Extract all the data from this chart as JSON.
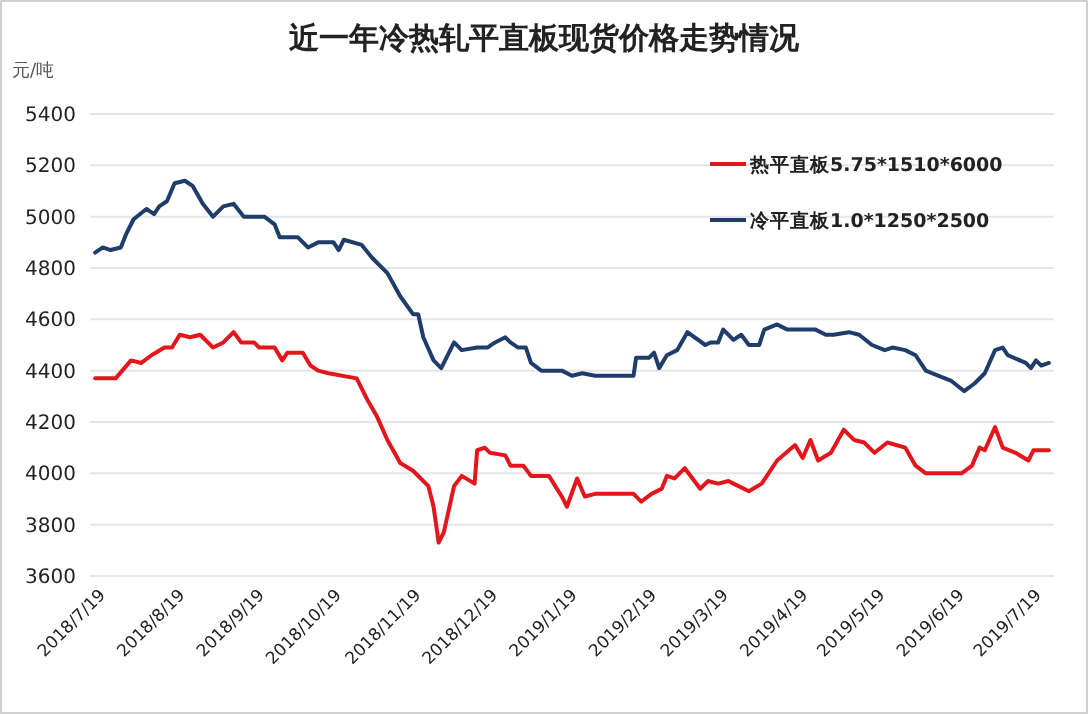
{
  "chart_data": {
    "type": "line",
    "title": "近一年冷热轧平直板现货价格走势情况",
    "ylabel": "元/吨",
    "xlim": [
      "2018-07-15",
      "2019-07-26"
    ],
    "ylim": [
      3600,
      5400
    ],
    "yticks": [
      3600,
      3800,
      4000,
      4200,
      4400,
      4600,
      4800,
      5000,
      5200,
      5400
    ],
    "xticks": [
      {
        "value": "2018-07-19",
        "label": "2018/7/19"
      },
      {
        "value": "2018-08-19",
        "label": "2018/8/19"
      },
      {
        "value": "2018-09-19",
        "label": "2018/9/19"
      },
      {
        "value": "2018-10-19",
        "label": "2018/10/19"
      },
      {
        "value": "2018-11-19",
        "label": "2018/11/19"
      },
      {
        "value": "2018-12-19",
        "label": "2018/12/19"
      },
      {
        "value": "2019-01-19",
        "label": "2019/1/19"
      },
      {
        "value": "2019-02-19",
        "label": "2019/2/19"
      },
      {
        "value": "2019-03-19",
        "label": "2019/3/19"
      },
      {
        "value": "2019-04-19",
        "label": "2019/4/19"
      },
      {
        "value": "2019-05-19",
        "label": "2019/5/19"
      },
      {
        "value": "2019-06-19",
        "label": "2019/6/19"
      },
      {
        "value": "2019-07-19",
        "label": "2019/7/19"
      }
    ],
    "grid": "y",
    "legend": "top right",
    "marker": "none",
    "line_style": "solid",
    "series": [
      {
        "name": "热平直板5.75*1510*6000",
        "color": "#e3161c",
        "x": [
          "2018-07-17",
          "2018-07-25",
          "2018-07-31",
          "2018-08-04",
          "2018-08-08",
          "2018-08-13",
          "2018-08-16",
          "2018-08-19",
          "2018-08-23",
          "2018-08-27",
          "2018-09-01",
          "2018-09-05",
          "2018-09-09",
          "2018-09-12",
          "2018-09-17",
          "2018-09-19",
          "2018-09-25",
          "2018-09-28",
          "2018-09-30",
          "2018-10-06",
          "2018-10-09",
          "2018-10-12",
          "2018-10-16",
          "2018-10-27",
          "2018-10-31",
          "2018-11-04",
          "2018-11-08",
          "2018-11-13",
          "2018-11-18",
          "2018-11-24",
          "2018-11-26",
          "2018-11-28",
          "2018-11-30",
          "2018-12-04",
          "2018-12-07",
          "2018-12-12",
          "2018-12-13",
          "2018-12-16",
          "2018-12-18",
          "2018-12-24",
          "2018-12-26",
          "2018-12-31",
          "2019-01-03",
          "2019-01-10",
          "2019-01-15",
          "2019-01-17",
          "2019-01-21",
          "2019-01-24",
          "2019-01-28",
          "2019-02-12",
          "2019-02-15",
          "2019-02-19",
          "2019-02-23",
          "2019-02-25",
          "2019-02-28",
          "2019-03-04",
          "2019-03-07",
          "2019-03-10",
          "2019-03-13",
          "2019-03-17",
          "2019-03-21",
          "2019-03-23",
          "2019-03-29",
          "2019-04-03",
          "2019-04-05",
          "2019-04-09",
          "2019-04-16",
          "2019-04-19",
          "2019-04-22",
          "2019-04-25",
          "2019-04-30",
          "2019-05-05",
          "2019-05-09",
          "2019-05-13",
          "2019-05-17",
          "2019-05-22",
          "2019-05-29",
          "2019-06-02",
          "2019-06-06",
          "2019-06-12",
          "2019-06-20",
          "2019-06-24",
          "2019-06-27",
          "2019-06-29",
          "2019-07-03",
          "2019-07-06",
          "2019-07-11",
          "2019-07-16",
          "2019-07-18",
          "2019-07-21",
          "2019-07-24"
        ],
        "values": [
          4370,
          4370,
          4440,
          4430,
          4460,
          4490,
          4490,
          4540,
          4530,
          4540,
          4490,
          4510,
          4550,
          4510,
          4510,
          4490,
          4490,
          4440,
          4470,
          4470,
          4420,
          4400,
          4390,
          4370,
          4290,
          4220,
          4130,
          4040,
          4010,
          3950,
          3870,
          3730,
          3770,
          3950,
          3990,
          3960,
          4090,
          4100,
          4080,
          4070,
          4030,
          4030,
          3990,
          3990,
          3910,
          3870,
          3980,
          3910,
          3920,
          3920,
          3890,
          3920,
          3940,
          3990,
          3980,
          4020,
          3980,
          3940,
          3970,
          3960,
          3970,
          3960,
          3930,
          3960,
          3990,
          4050,
          4110,
          4060,
          4130,
          4050,
          4080,
          4170,
          4130,
          4120,
          4080,
          4120,
          4100,
          4030,
          4000,
          4000,
          4000,
          4030,
          4100,
          4090,
          4180,
          4100,
          4080,
          4050,
          4090,
          4090,
          4090
        ]
      },
      {
        "name": "冷平直板1.0*1250*2500",
        "color": "#1f3d6b",
        "x": [
          "2018-07-17",
          "2018-07-20",
          "2018-07-23",
          "2018-07-27",
          "2018-07-29",
          "2018-08-01",
          "2018-08-06",
          "2018-08-09",
          "2018-08-11",
          "2018-08-14",
          "2018-08-17",
          "2018-08-21",
          "2018-08-24",
          "2018-08-28",
          "2018-09-01",
          "2018-09-05",
          "2018-09-09",
          "2018-09-13",
          "2018-09-21",
          "2018-09-25",
          "2018-09-27",
          "2018-10-04",
          "2018-10-08",
          "2018-10-12",
          "2018-10-18",
          "2018-10-20",
          "2018-10-22",
          "2018-10-29",
          "2018-11-02",
          "2018-11-08",
          "2018-11-13",
          "2018-11-18",
          "2018-11-20",
          "2018-11-22",
          "2018-11-26",
          "2018-11-29",
          "2018-12-04",
          "2018-12-07",
          "2018-12-13",
          "2018-12-17",
          "2018-12-20",
          "2018-12-24",
          "2018-12-26",
          "2018-12-29",
          "2019-01-01",
          "2019-01-03",
          "2019-01-07",
          "2019-01-15",
          "2019-01-19",
          "2019-01-23",
          "2019-01-28",
          "2019-02-12",
          "2019-02-13",
          "2019-02-18",
          "2019-02-20",
          "2019-02-22",
          "2019-02-25",
          "2019-03-01",
          "2019-03-05",
          "2019-03-12",
          "2019-03-14",
          "2019-03-17",
          "2019-03-19",
          "2019-03-23",
          "2019-03-26",
          "2019-03-29",
          "2019-04-02",
          "2019-04-04",
          "2019-04-09",
          "2019-04-13",
          "2019-04-17",
          "2019-04-24",
          "2019-04-28",
          "2019-05-01",
          "2019-05-07",
          "2019-05-11",
          "2019-05-16",
          "2019-05-21",
          "2019-05-24",
          "2019-05-29",
          "2019-06-02",
          "2019-06-06",
          "2019-06-11",
          "2019-06-16",
          "2019-06-21",
          "2019-06-25",
          "2019-06-29",
          "2019-07-03",
          "2019-07-06",
          "2019-07-08",
          "2019-07-15",
          "2019-07-17",
          "2019-07-19",
          "2019-07-21",
          "2019-07-24"
        ],
        "values": [
          4860,
          4880,
          4870,
          4880,
          4930,
          4990,
          5030,
          5010,
          5040,
          5060,
          5130,
          5140,
          5120,
          5050,
          5000,
          5040,
          5050,
          5000,
          5000,
          4970,
          4920,
          4920,
          4880,
          4900,
          4900,
          4870,
          4910,
          4890,
          4840,
          4780,
          4690,
          4620,
          4620,
          4530,
          4440,
          4410,
          4510,
          4480,
          4490,
          4490,
          4510,
          4530,
          4510,
          4490,
          4490,
          4430,
          4400,
          4400,
          4380,
          4390,
          4380,
          4380,
          4450,
          4450,
          4470,
          4410,
          4460,
          4480,
          4550,
          4500,
          4510,
          4510,
          4560,
          4520,
          4540,
          4500,
          4500,
          4560,
          4580,
          4560,
          4560,
          4560,
          4540,
          4540,
          4550,
          4540,
          4500,
          4480,
          4490,
          4480,
          4460,
          4400,
          4380,
          4360,
          4320,
          4350,
          4390,
          4480,
          4490,
          4460,
          4430,
          4410,
          4440,
          4420,
          4430
        ]
      }
    ]
  }
}
